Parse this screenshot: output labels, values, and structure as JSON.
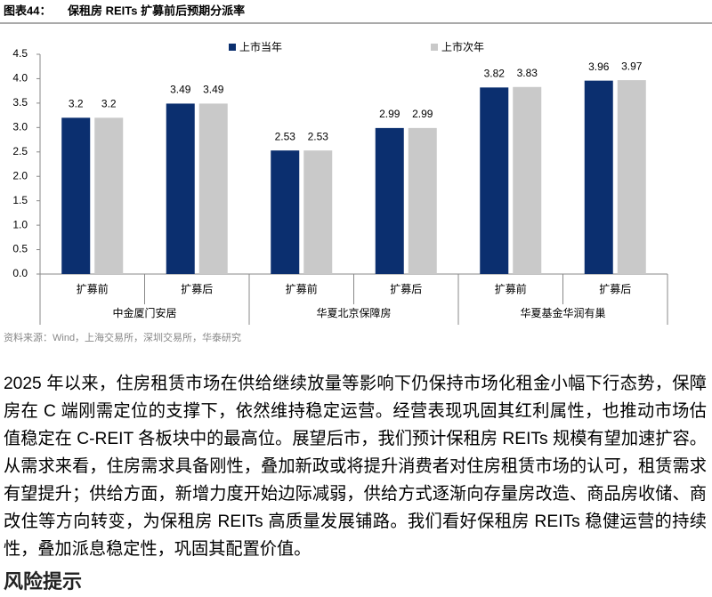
{
  "chart_data": {
    "type": "bar",
    "figure_label": "图表44：",
    "title": "保租房 REITs 扩募前后预期分派率",
    "categories": [
      "扩募前",
      "扩募后",
      "扩募前",
      "扩募后",
      "扩募前",
      "扩募后"
    ],
    "category_groups": [
      "中金厦门安居",
      "华夏北京保障房",
      "华夏基金华润有巢"
    ],
    "series": [
      {
        "name": "上市当年",
        "color": "#0b2f6f",
        "values": [
          3.2,
          3.49,
          2.53,
          2.99,
          3.82,
          3.96
        ]
      },
      {
        "name": "上市次年",
        "color": "#c9c9c9",
        "values": [
          3.2,
          3.49,
          2.53,
          2.99,
          3.83,
          3.97
        ]
      }
    ],
    "ylim": [
      0,
      4.5
    ],
    "yticks": [
      {
        "value": 0,
        "label": "0.0"
      },
      0.5,
      {
        "value": 1,
        "label": "1.0"
      },
      1.5,
      {
        "value": 2,
        "label": "2.0"
      },
      2.5,
      {
        "value": 3,
        "label": "3.0"
      },
      3.5,
      {
        "value": 4,
        "label": "4.0"
      },
      4.5
    ],
    "grid": false,
    "legend": "top"
  },
  "source": "资料来源：Wind，上海交易所，深圳交易所，华泰研究",
  "body": "2025 年以来，住房租赁市场在供给继续放量等影响下仍保持市场化租金小幅下行态势，保障房在 C 端刚需定位的支撑下，依然维持稳定运营。经营表现巩固其红利属性，也推动市场估值稳定在 C-REIT 各板块中的最高位。展望后市，我们预计保租房 REITs 规模有望加速扩容。从需求来看，住房需求具备刚性，叠加新政或将提升消费者对住房租赁市场的认可，租赁需求有望提升；供给方面，新增力度开始边际减弱，供给方式逐渐向存量房改造、商品房收储、商改住等方向转变，为保租房 REITs 高质量发展铺路。我们看好保租房 REITs 稳健运营的持续性，叠加派息稳定性，巩固其配置价值。",
  "heading": "风险提示"
}
